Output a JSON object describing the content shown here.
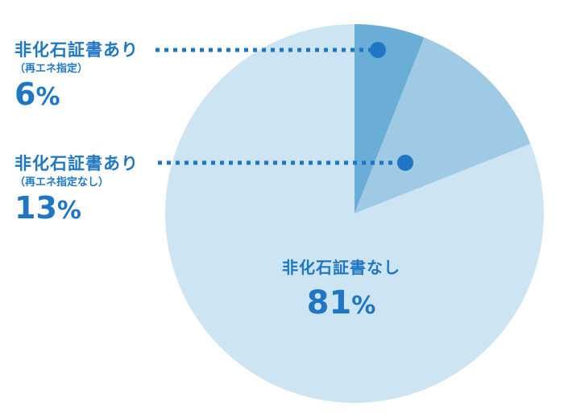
{
  "colors": {
    "text": "#1f77c4",
    "leader": "#1f77c4",
    "slice_renewable": "#6aaed8",
    "slice_non_renewable": "#9ecae6",
    "slice_none": "#cde4f2"
  },
  "chart_data": {
    "type": "pie",
    "start_angle_deg": 0,
    "direction": "clockwise",
    "slices": [
      {
        "label": "非化石証書あり",
        "sublabel": "（再エネ指定）",
        "value": 6,
        "value_text": "6",
        "unit": "%",
        "color": "#6aaed8"
      },
      {
        "label": "非化石証書あり",
        "sublabel": "（再エネ指定なし）",
        "value": 13,
        "value_text": "13",
        "unit": "%",
        "color": "#9ecae6"
      },
      {
        "label": "非化石証書なし",
        "sublabel": "",
        "value": 81,
        "value_text": "81",
        "unit": "%",
        "color": "#cde4f2"
      }
    ]
  }
}
